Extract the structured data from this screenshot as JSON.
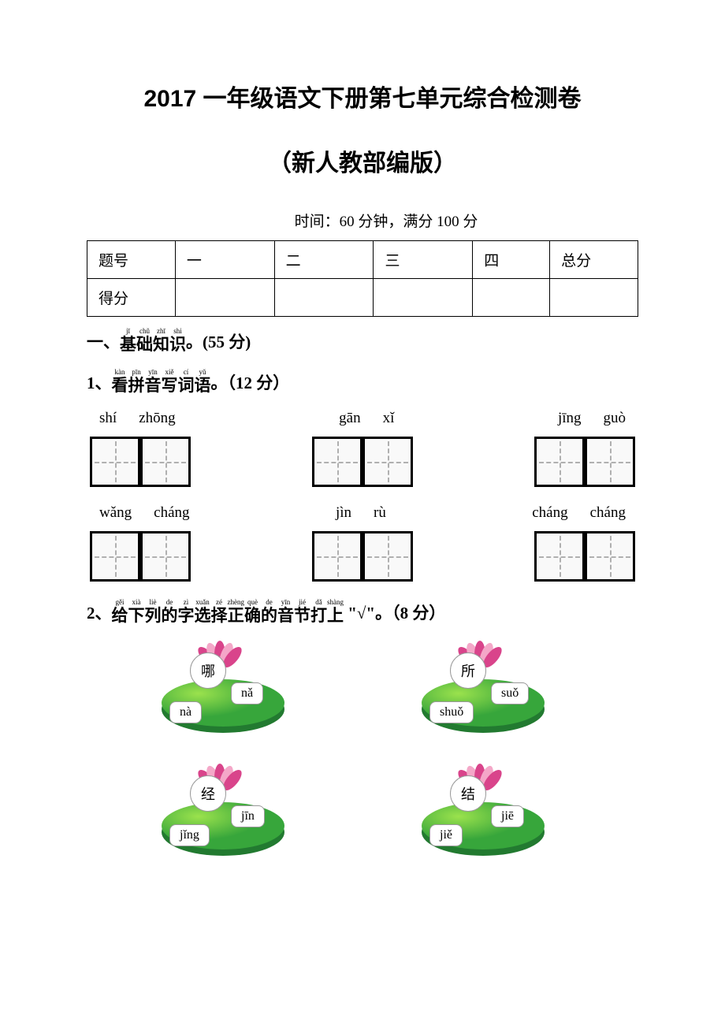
{
  "title_line1": "2017 一年级语文下册第七单元综合检测卷",
  "title_line2": "（新人教部编版）",
  "timing": "时间：60 分钟，满分 100 分",
  "score_table": {
    "headers": [
      "题号",
      "一",
      "二",
      "三",
      "四",
      "总分"
    ],
    "row2_label": "得分"
  },
  "section1": {
    "prefix": "一、",
    "chars": [
      "基",
      "础",
      "知",
      "识"
    ],
    "pinyin": [
      "jī",
      "chǔ",
      "zhī",
      "shi"
    ],
    "suffix": "。(55 分)"
  },
  "q1": {
    "prefix": "1、",
    "chars": [
      "看",
      "拼",
      "音",
      "写",
      "词",
      "语"
    ],
    "pinyin": [
      "kàn",
      "pīn",
      "yīn",
      "xiě",
      "cí",
      "yǔ"
    ],
    "suffix": "。（12 分）",
    "row1": [
      [
        "shí",
        "zhōng"
      ],
      [
        "gān",
        "xǐ"
      ],
      [
        "jīng",
        "guò"
      ]
    ],
    "row2": [
      [
        "wǎng",
        "cháng"
      ],
      [
        "jìn",
        "rù"
      ],
      [
        "cháng",
        "cháng"
      ]
    ]
  },
  "q2": {
    "prefix": "2、",
    "chars": [
      "给",
      "下",
      "列",
      "的",
      "字",
      "选",
      "择",
      "正",
      "确",
      "的",
      "音",
      "节",
      "打",
      "上"
    ],
    "pinyin": [
      "gěi",
      "xià",
      "liè",
      "de",
      "zì",
      "xuǎn",
      "zé",
      "zhèng",
      "què",
      "de",
      "yīn",
      "jié",
      "dǎ",
      "shàng"
    ],
    "suffix_quote": "\"√\"",
    "suffix": "。（8 分）",
    "items": [
      {
        "char": "哪",
        "opt1": "nà",
        "opt2": "nǎ"
      },
      {
        "char": "所",
        "opt1": "shuǒ",
        "opt2": "suǒ"
      },
      {
        "char": "经",
        "opt1": "jǐng",
        "opt2": "jīn"
      },
      {
        "char": "结",
        "opt1": "jiě",
        "opt2": "jiē"
      }
    ]
  },
  "colors": {
    "petal_fill": "#d9448b",
    "petal_light": "#f4a7c8",
    "leaf_grad_a": "#37a63b",
    "leaf_grad_b": "#9be24d",
    "leaf_shadow": "#0a6b1a"
  }
}
